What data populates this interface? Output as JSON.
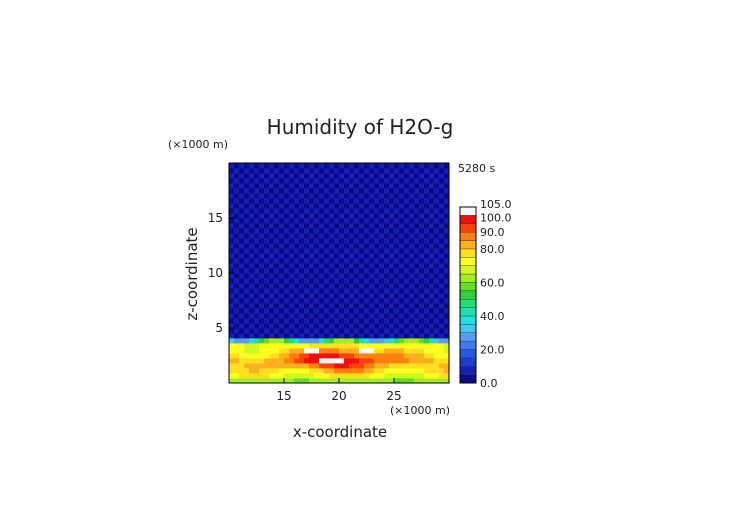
{
  "chart_data": {
    "type": "heatmap",
    "title": "Humidity of H2O-g",
    "time_label": "5280 s",
    "xlabel": "x-coordinate",
    "ylabel": "z-coordinate",
    "x_unit": "(×1000 m)",
    "y_unit": "(×1000 m)",
    "xlim": [
      10,
      30
    ],
    "ylim": [
      0,
      20
    ],
    "x_ticks": [
      15,
      20,
      25
    ],
    "y_ticks": [
      5,
      10,
      15
    ],
    "colorbar": {
      "levels": [
        0,
        5,
        10,
        15,
        20,
        25,
        30,
        35,
        40,
        45,
        50,
        55,
        60,
        65,
        70,
        75,
        80,
        85,
        90,
        95,
        100,
        105
      ],
      "colors": [
        "#0b0b8a",
        "#1420b0",
        "#1e3cd0",
        "#2858e0",
        "#3c7cf0",
        "#50a0f8",
        "#40c8f0",
        "#20e0e0",
        "#20e0b0",
        "#20e070",
        "#30d040",
        "#60e020",
        "#a0f020",
        "#d0f820",
        "#ffff20",
        "#ffe020",
        "#ffb020",
        "#ff8010",
        "#ff4010",
        "#f01010",
        "#ffffff"
      ],
      "tick_labels": [
        "0.0",
        "20.0",
        "40.0",
        "60.0",
        "80.0",
        "90.0",
        "100.0",
        "105.0"
      ],
      "tick_values": [
        0,
        20,
        40,
        60,
        80,
        90,
        100,
        105
      ]
    },
    "field": {
      "background_level": 2,
      "moist_layer_top_z": 4.0
    }
  }
}
